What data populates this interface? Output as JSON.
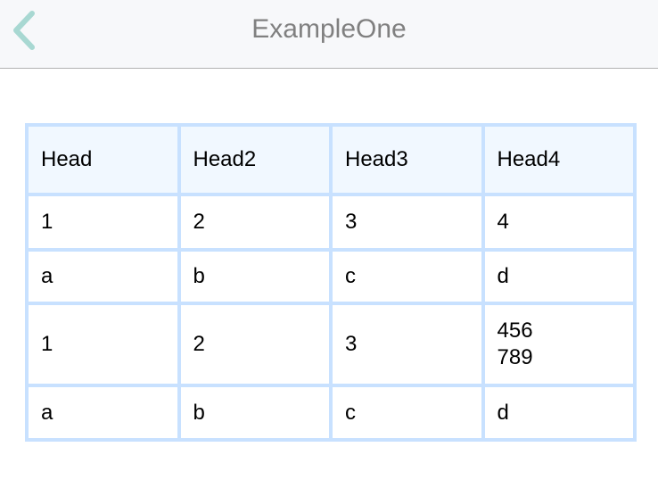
{
  "nav": {
    "title": "ExampleOne",
    "back_icon": "chevron-left-icon",
    "back_color": "#a8d8d2"
  },
  "table": {
    "border_color": "#c8e1ff",
    "header_bg": "#f1f8ff",
    "headers": [
      "Head",
      "Head2",
      "Head3",
      "Head4"
    ],
    "rows": [
      [
        "1",
        "2",
        "3",
        "4"
      ],
      [
        "a",
        "b",
        "c",
        "d"
      ],
      [
        "1",
        "2",
        "3",
        "456\n789"
      ],
      [
        "a",
        "b",
        "c",
        "d"
      ]
    ]
  }
}
